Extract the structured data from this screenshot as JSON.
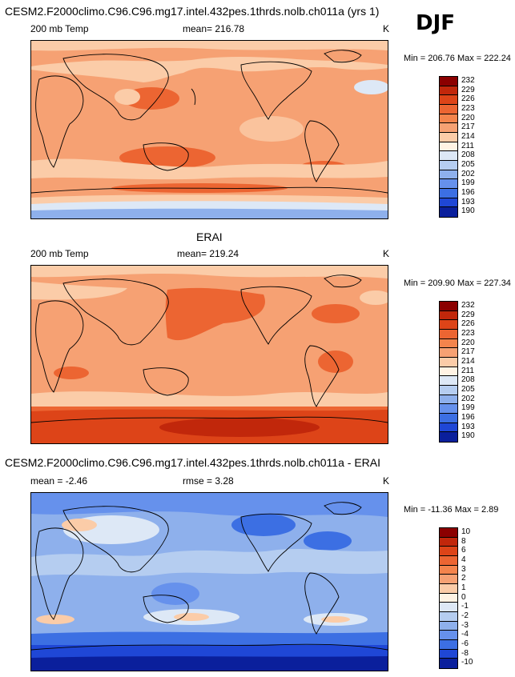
{
  "season": "DJF",
  "panels": [
    {
      "id": "model",
      "title": "CESM2.F2000climo.C96.C96.mg17.intel.432pes.1thrds.nolb.ch011a (yrs 1)",
      "left_label": "200 mb Temp",
      "center_label": "mean= 216.78",
      "units": "K",
      "minmax": "Min = 206.76 Max = 222.24"
    },
    {
      "id": "obs",
      "title": "ERAI",
      "left_label": "200 mb Temp",
      "center_label": "mean= 219.24",
      "units": "K",
      "minmax": "Min = 209.90 Max = 227.34"
    },
    {
      "id": "diff",
      "title": "CESM2.F2000climo.C96.C96.mg17.intel.432pes.1thrds.nolb.ch011a - ERAI",
      "left_label": "mean =  -2.46",
      "center_label": "rmse =  3.28",
      "units": "K",
      "minmax": "Min = -11.36 Max =   2.89"
    }
  ],
  "chart_data": [
    {
      "type": "heatmap",
      "panel": "model",
      "variable": "200 mb Temp",
      "units": "K",
      "mean": 216.78,
      "min": 206.76,
      "max": 222.24,
      "colorbar_levels": [
        "232",
        "229",
        "226",
        "223",
        "220",
        "217",
        "214",
        "211",
        "208",
        "205",
        "202",
        "199",
        "196",
        "193",
        "190"
      ],
      "colorbar_colors": [
        "#8b0000",
        "#c1270b",
        "#dd4418",
        "#ec6532",
        "#f4844c",
        "#f6a173",
        "#fbcca8",
        "#fff3e4",
        "#dde8f6",
        "#b5cdf0",
        "#8eb0ec",
        "#6691ec",
        "#3c6fe3",
        "#1f47d6",
        "#0a1f9c"
      ]
    },
    {
      "type": "heatmap",
      "panel": "obs",
      "variable": "200 mb Temp",
      "units": "K",
      "mean": 219.24,
      "min": 209.9,
      "max": 227.34,
      "colorbar_levels": [
        "232",
        "229",
        "226",
        "223",
        "220",
        "217",
        "214",
        "211",
        "208",
        "205",
        "202",
        "199",
        "196",
        "193",
        "190"
      ],
      "colorbar_colors": [
        "#8b0000",
        "#c1270b",
        "#dd4418",
        "#ec6532",
        "#f4844c",
        "#f6a173",
        "#fbcca8",
        "#fff3e4",
        "#dde8f6",
        "#b5cdf0",
        "#8eb0ec",
        "#6691ec",
        "#3c6fe3",
        "#1f47d6",
        "#0a1f9c"
      ]
    },
    {
      "type": "heatmap",
      "panel": "diff",
      "variable": "model - ERAI",
      "units": "K",
      "mean": -2.46,
      "rmse": 3.28,
      "min": -11.36,
      "max": 2.89,
      "colorbar_levels": [
        "10",
        "8",
        "6",
        "4",
        "3",
        "2",
        "1",
        "0",
        "-1",
        "-2",
        "-3",
        "-4",
        "-6",
        "-8",
        "-10"
      ],
      "colorbar_colors": [
        "#8b0000",
        "#c1270b",
        "#dd4418",
        "#ec6532",
        "#f4844c",
        "#f6a173",
        "#fbcca8",
        "#fff3e4",
        "#dde8f6",
        "#b5cdf0",
        "#8eb0ec",
        "#6691ec",
        "#3c6fe3",
        "#1f47d6",
        "#0a1f9c"
      ]
    }
  ]
}
